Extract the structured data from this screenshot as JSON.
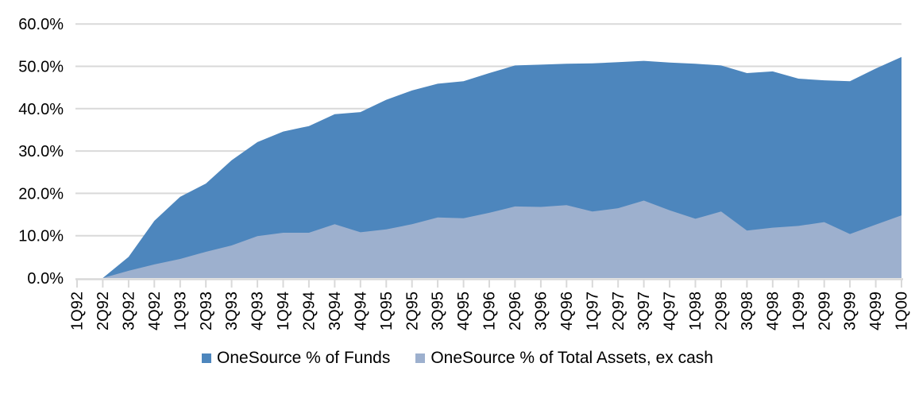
{
  "chart_data": {
    "type": "area",
    "stacked": false,
    "title": "",
    "xlabel": "",
    "ylabel": "",
    "background_color": "#ffffff",
    "gridline_color": "#d9d9d9",
    "axis_color": "#d9d9d9",
    "text_color": "#000000",
    "grid": true,
    "legend_position": "bottom",
    "y_axis": {
      "min": 0,
      "max": 60,
      "step": 10,
      "tick_labels": [
        "0.0%",
        "10.0%",
        "20.0%",
        "30.0%",
        "40.0%",
        "50.0%",
        "60.0%"
      ]
    },
    "categories": [
      "1Q92",
      "2Q92",
      "3Q92",
      "4Q92",
      "1Q93",
      "2Q93",
      "3Q93",
      "4Q93",
      "1Q94",
      "2Q94",
      "3Q94",
      "4Q94",
      "1Q95",
      "2Q95",
      "3Q95",
      "4Q95",
      "1Q96",
      "2Q96",
      "3Q96",
      "4Q96",
      "1Q97",
      "2Q97",
      "3Q97",
      "4Q97",
      "1Q98",
      "2Q98",
      "3Q98",
      "4Q98",
      "1Q99",
      "2Q99",
      "3Q99",
      "4Q99",
      "1Q00"
    ],
    "series": [
      {
        "name": "OneSource % of Funds",
        "color": "#4d86bd",
        "values": [
          0,
          0,
          5.0,
          13.5,
          19.2,
          22.3,
          27.8,
          32.1,
          34.6,
          35.9,
          38.7,
          39.2,
          42.1,
          44.3,
          45.9,
          46.5,
          48.4,
          50.2,
          50.4,
          50.6,
          50.7,
          51.0,
          51.3,
          50.9,
          50.6,
          50.2,
          48.4,
          48.8,
          47.1,
          46.7,
          46.5,
          49.5,
          52.2
        ]
      },
      {
        "name": "OneSource % of Total Assets, ex cash",
        "color": "#9db0ce",
        "values": [
          0,
          0,
          1.7,
          3.2,
          4.5,
          6.2,
          7.7,
          9.9,
          10.7,
          10.7,
          12.7,
          10.8,
          11.5,
          12.7,
          14.3,
          14.1,
          15.4,
          16.9,
          16.8,
          17.2,
          15.7,
          16.5,
          18.3,
          16.0,
          14.0,
          15.7,
          11.2,
          11.9,
          12.3,
          13.2,
          10.4,
          12.6,
          14.8
        ]
      }
    ]
  }
}
